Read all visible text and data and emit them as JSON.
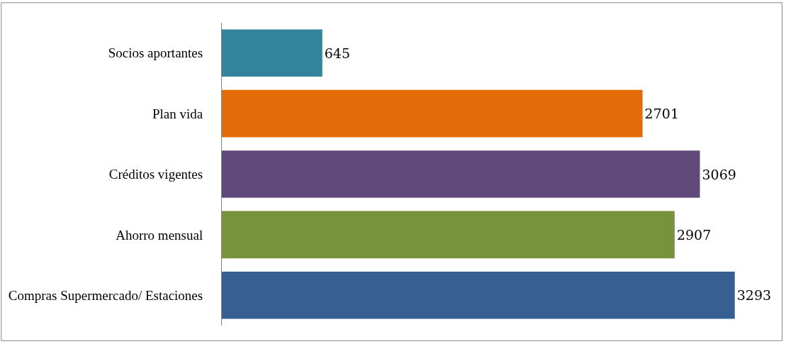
{
  "chart_data": {
    "type": "bar",
    "orientation": "horizontal",
    "categories": [
      "Socios aportantes",
      "Plan vida",
      "Créditos vigentes",
      "Ahorro mensual",
      "Compras Supermercado/ Estaciones"
    ],
    "values": [
      645,
      2701,
      3069,
      2907,
      3293
    ],
    "colors": [
      "#31849b",
      "#e36c09",
      "#604a7b",
      "#77933c",
      "#366092"
    ],
    "data_labels": true
  }
}
